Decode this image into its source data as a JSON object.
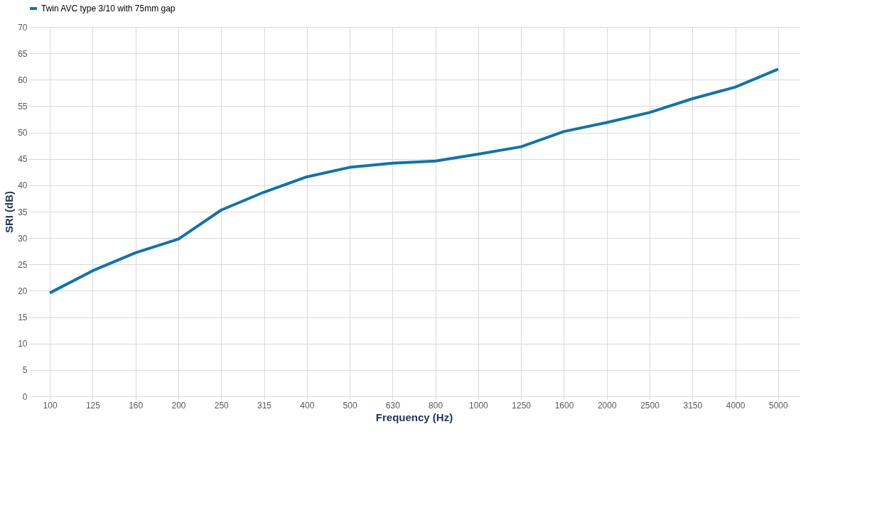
{
  "chart_data": {
    "type": "line",
    "xlabel": "Frequency (Hz)",
    "ylabel": "SRI (dB)",
    "categories": [
      "100",
      "125",
      "160",
      "200",
      "250",
      "315",
      "400",
      "500",
      "630",
      "800",
      "1000",
      "1250",
      "1600",
      "2000",
      "2500",
      "3150",
      "4000",
      "5000"
    ],
    "series": [
      {
        "name": "Twin AVC type 3/10 with 75mm gap",
        "color": "#0e74b0",
        "values": [
          19.6,
          23.8,
          27.2,
          29.8,
          35.3,
          38.7,
          41.6,
          43.4,
          44.2,
          44.6,
          45.9,
          47.3,
          50.2,
          51.9,
          53.8,
          56.4,
          58.6,
          62.0
        ]
      }
    ],
    "ylim": [
      0,
      70
    ],
    "yticks": [
      0,
      5,
      10,
      15,
      20,
      25,
      30,
      35,
      40,
      45,
      50,
      55,
      60,
      65,
      70
    ],
    "grid": true,
    "legend": "top",
    "marker": "none",
    "line_style": "solid"
  }
}
